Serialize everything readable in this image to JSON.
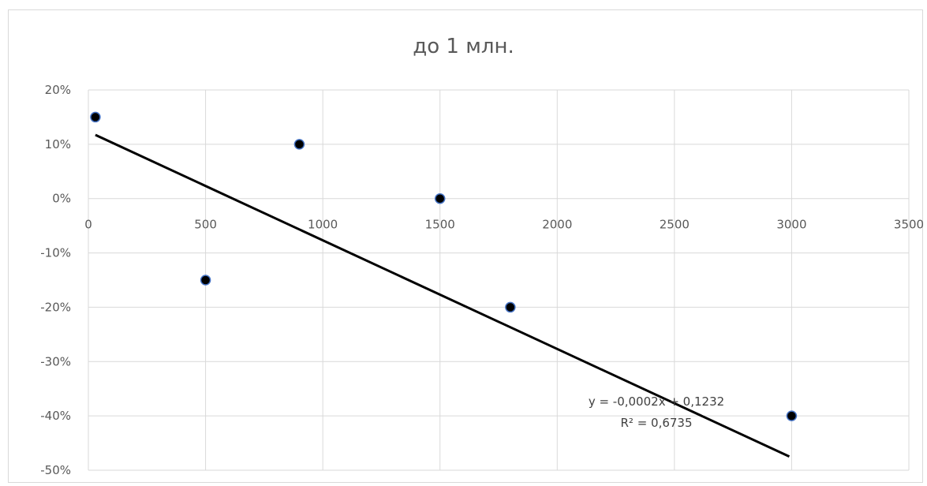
{
  "chart_data": {
    "type": "scatter",
    "title": "до 1 млн.",
    "xlabel": "",
    "ylabel": "",
    "xlim": [
      0,
      3500
    ],
    "ylim": [
      -0.5,
      0.2
    ],
    "x_ticks": [
      0,
      500,
      1000,
      1500,
      2000,
      2500,
      3000,
      3500
    ],
    "x_tick_labels": [
      "0",
      "500",
      "1000",
      "1500",
      "2000",
      "2500",
      "3000",
      "3500"
    ],
    "y_ticks": [
      0.2,
      0.1,
      0,
      -0.1,
      -0.2,
      -0.3,
      -0.4,
      -0.5
    ],
    "y_tick_labels": [
      "20%",
      "10%",
      "0%",
      "-10%",
      "-20%",
      "-30%",
      "-40%",
      "-50%"
    ],
    "grid": true,
    "legend": "none",
    "series": [
      {
        "points": [
          {
            "x": 30,
            "y": 0.15
          },
          {
            "x": 500,
            "y": -0.15
          },
          {
            "x": 900,
            "y": 0.1
          },
          {
            "x": 1500,
            "y": 0.0
          },
          {
            "x": 1800,
            "y": -0.2
          },
          {
            "x": 3000,
            "y": -0.4
          }
        ],
        "marker_color": "#000000",
        "marker_edge_color": "#4472c4"
      }
    ],
    "trendline": {
      "type": "linear",
      "slope": -0.0002,
      "intercept": 0.1232,
      "x_range": [
        30,
        2990
      ],
      "color": "#000000",
      "equation": "y = -0,0002x + 0,1232",
      "r_squared": "R² = 0,6735"
    }
  }
}
